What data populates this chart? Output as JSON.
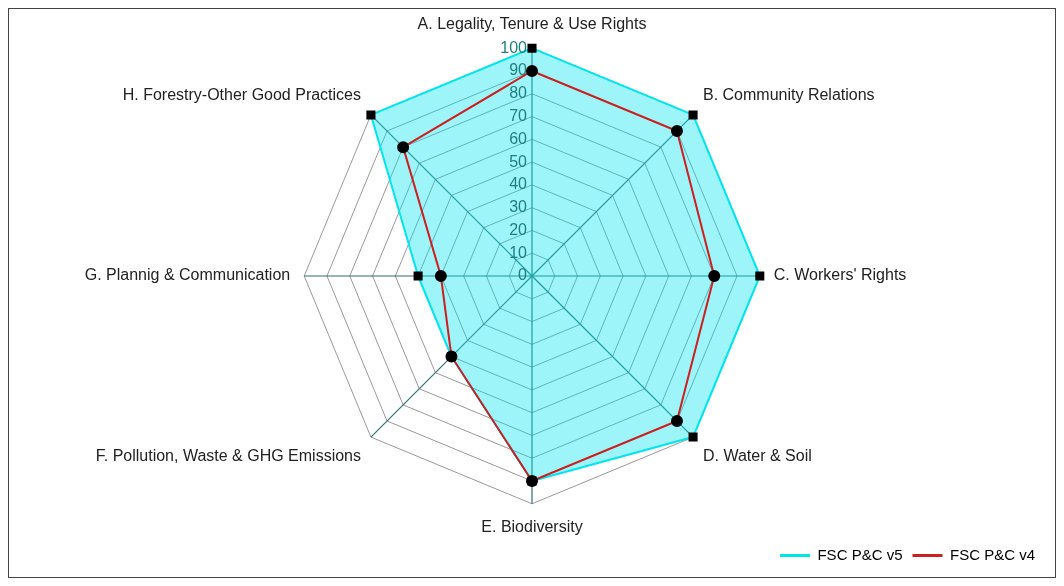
{
  "chart_data": {
    "type": "radar",
    "categories": [
      "A. Legality, Tenure & Use Rights",
      "B. Community Relations",
      "C. Workers' Rights",
      "D. Water & Soil",
      "E. Biodiversity",
      "F. Pollution, Waste & GHG Emissions",
      "G. Plannig & Communication",
      "H. Forestry-Other Good Practices"
    ],
    "series": [
      {
        "name": "FSC P&C v5",
        "color": "#00e5ee",
        "marker": "square",
        "values": [
          100,
          100,
          100,
          100,
          90,
          50,
          50,
          100
        ]
      },
      {
        "name": "FSC P&C v4",
        "color": "#cc2020",
        "marker": "circle",
        "values": [
          90,
          90,
          80,
          90,
          90,
          50,
          40,
          80
        ]
      }
    ],
    "ylim": [
      0,
      100
    ],
    "yticks": [
      0,
      10,
      20,
      30,
      40,
      50,
      60,
      70,
      80,
      90,
      100
    ],
    "grid": true,
    "legend": "bottom right"
  }
}
